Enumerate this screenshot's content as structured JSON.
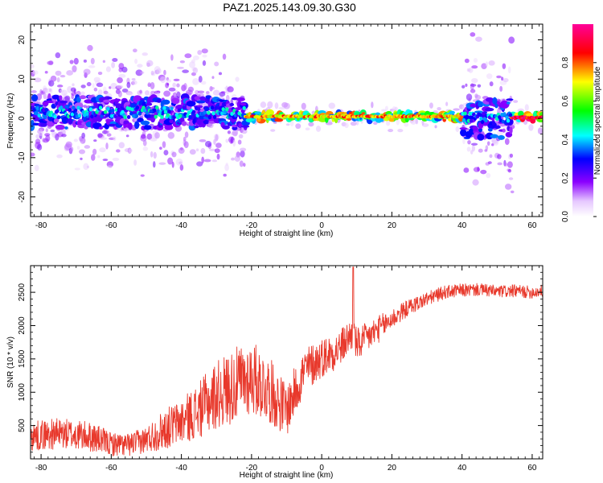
{
  "figure": {
    "title": "PAZ1.2025.143.09.30.G30"
  },
  "chart_data": [
    {
      "type": "heatmap",
      "xlabel": "Height of straight line (km)",
      "ylabel": "Frequency (Hz)",
      "xlim": [
        -83,
        63
      ],
      "ylim": [
        -25,
        24
      ],
      "x_ticks": [
        -80,
        -60,
        -40,
        -20,
        0,
        20,
        40,
        60
      ],
      "y_ticks": [
        -20,
        -10,
        0,
        10,
        20
      ],
      "grid": false,
      "colorbar": {
        "label": "Normalized spectral amplitude",
        "range": [
          0,
          1
        ],
        "ticks": [
          0.0,
          0.2,
          0.4,
          0.6,
          0.8
        ],
        "colors": [
          "#ffffff",
          "#8b00ff",
          "#0000ff",
          "#00ffff",
          "#00ff00",
          "#ffff00",
          "#ff0000",
          "#ff00aa"
        ]
      },
      "ridge": {
        "description_frequency_hz": 0.3,
        "segments": [
          {
            "x_start": -83,
            "x_end": -22,
            "frequency": 1.5,
            "amplitude": 0.3,
            "spread": 4
          },
          {
            "x_start": -22,
            "x_end": 40,
            "frequency": 0.5,
            "amplitude": 0.7,
            "spread": 1
          },
          {
            "x_start": 40,
            "x_end": 54,
            "frequency": 0.0,
            "amplitude": 0.3,
            "spread": 5
          },
          {
            "x_start": 54,
            "x_end": 63,
            "frequency": 0.2,
            "amplitude": 0.85,
            "spread": 1
          }
        ]
      }
    },
    {
      "type": "line",
      "xlabel": "Height of straight line (km)",
      "ylabel": "SNR (10 * v/v)",
      "xlim": [
        -83,
        63
      ],
      "ylim": [
        0,
        2900
      ],
      "x_ticks": [
        -80,
        -60,
        -40,
        -20,
        0,
        20,
        40,
        60
      ],
      "y_ticks": [
        500,
        1000,
        1500,
        2000,
        2500
      ],
      "grid": false,
      "color": "#e8392c",
      "x": [
        -83,
        -80,
        -75,
        -70,
        -65,
        -60,
        -55,
        -50,
        -45,
        -40,
        -35,
        -30,
        -25,
        -20,
        -15,
        -10,
        -5,
        0,
        5,
        9,
        10,
        15,
        20,
        25,
        30,
        35,
        40,
        45,
        50,
        55,
        60,
        63
      ],
      "y": [
        330,
        360,
        380,
        360,
        320,
        220,
        210,
        290,
        440,
        560,
        730,
        960,
        1100,
        1230,
        1040,
        730,
        1320,
        1520,
        1650,
        1900,
        1700,
        1900,
        2100,
        2280,
        2400,
        2500,
        2530,
        2540,
        2510,
        2520,
        2500,
        2520
      ],
      "noise_amplitude": [
        220,
        230,
        230,
        230,
        220,
        180,
        170,
        200,
        300,
        340,
        420,
        520,
        560,
        560,
        500,
        400,
        350,
        300,
        280,
        250,
        260,
        220,
        160,
        120,
        110,
        100,
        100,
        95,
        95,
        95,
        95,
        95
      ]
    }
  ]
}
